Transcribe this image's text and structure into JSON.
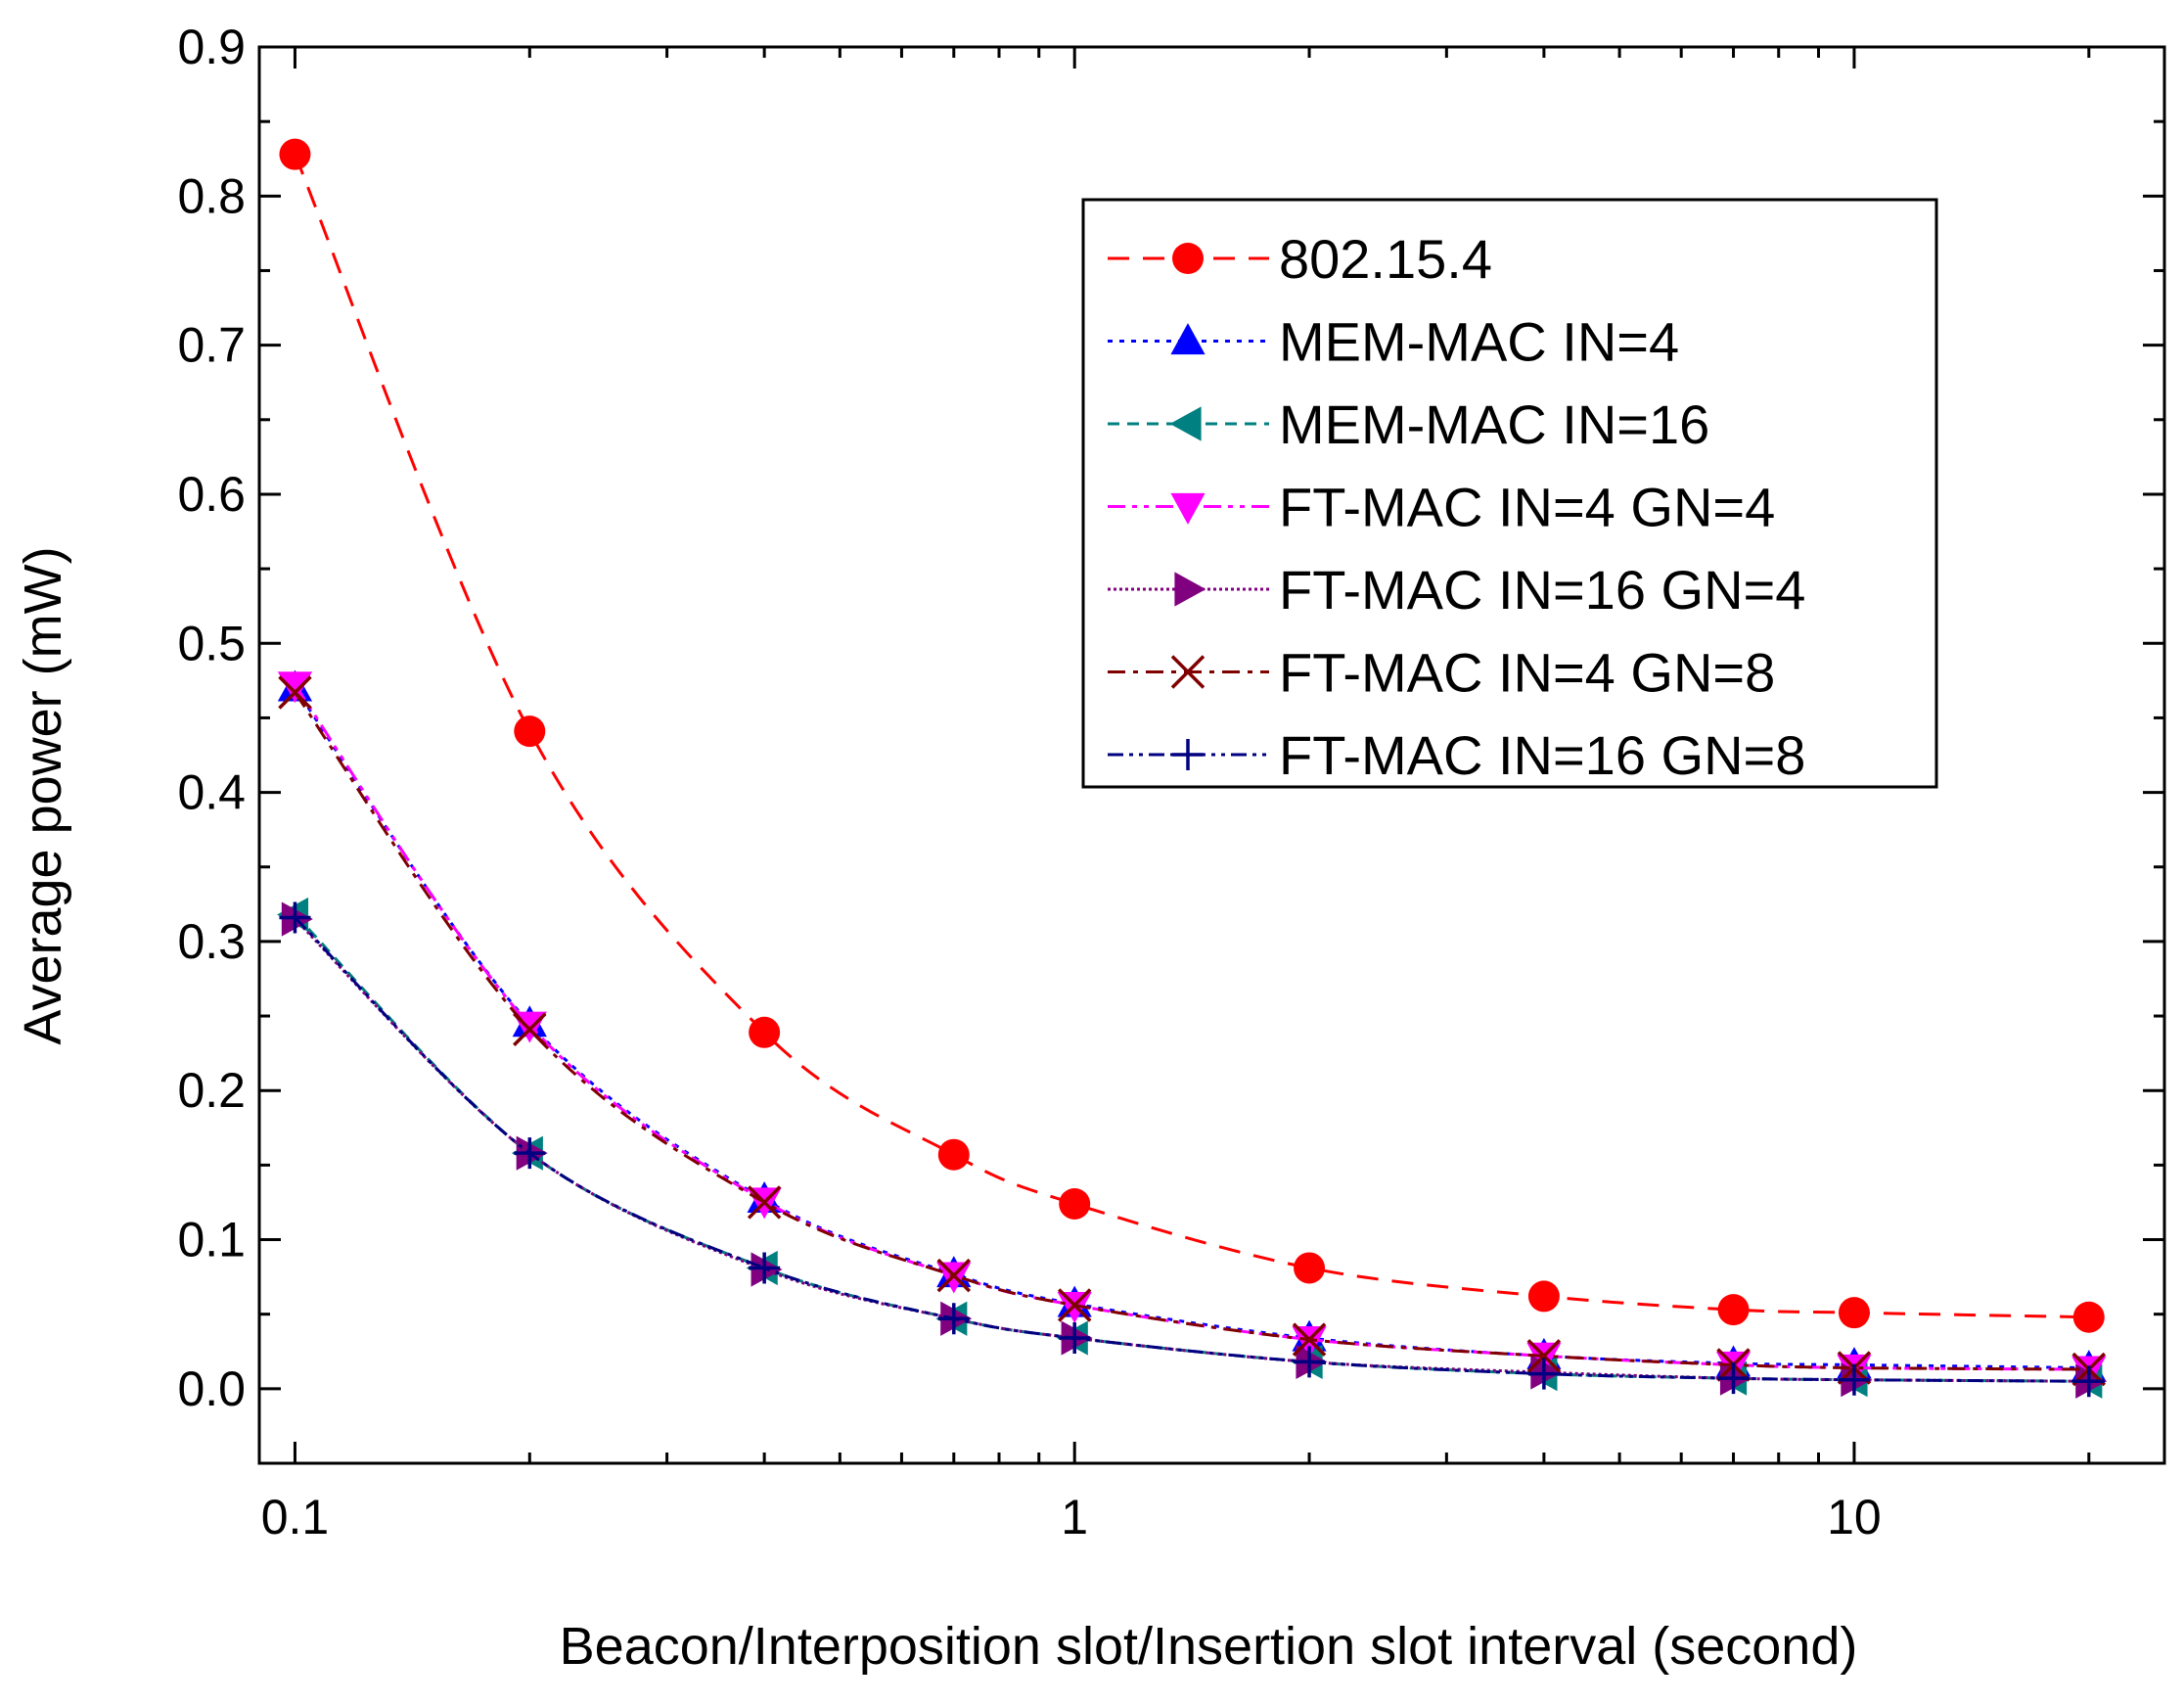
{
  "chart_data": {
    "type": "line",
    "title": "",
    "xlabel": "Beacon/Interposition slot/Insertion slot interval (second)",
    "ylabel": "Average power (mW)",
    "xscale": "log",
    "xlim": [
      0.09,
      25
    ],
    "ylim": [
      -0.05,
      0.9
    ],
    "xticks": [
      0.1,
      1,
      10
    ],
    "xtick_labels": [
      "0.1",
      "1",
      "10"
    ],
    "yticks": [
      0.0,
      0.1,
      0.2,
      0.3,
      0.4,
      0.5,
      0.6,
      0.7,
      0.8,
      0.9
    ],
    "ytick_labels": [
      "0.0",
      "0.1",
      "0.2",
      "0.3",
      "0.4",
      "0.5",
      "0.6",
      "0.7",
      "0.8",
      "0.9"
    ],
    "grid": false,
    "legend_position": "top-right",
    "x": [
      0.1,
      0.2,
      0.4,
      0.7,
      1,
      2,
      4,
      7,
      10,
      20
    ],
    "series": [
      {
        "name": "802.15.4",
        "color": "#ff0000",
        "marker": "circle",
        "dash": "22,14",
        "values": [
          0.828,
          0.441,
          0.239,
          0.157,
          0.124,
          0.081,
          0.062,
          0.053,
          0.051,
          0.048
        ]
      },
      {
        "name": "MEM-MAC IN=4",
        "color": "#0000ff",
        "marker": "triangle-up",
        "dash": "5,7",
        "values": [
          0.47,
          0.245,
          0.127,
          0.077,
          0.057,
          0.034,
          0.022,
          0.017,
          0.016,
          0.014
        ]
      },
      {
        "name": "MEM-MAC IN=16",
        "color": "#008080",
        "marker": "triangle-left",
        "dash": "12,8",
        "values": [
          0.318,
          0.158,
          0.081,
          0.047,
          0.034,
          0.018,
          0.01,
          0.007,
          0.006,
          0.005
        ]
      },
      {
        "name": "FT-MAC IN=4 GN=4",
        "color": "#ff00ff",
        "marker": "triangle-down",
        "dash": "18,7,5,7,5,7",
        "values": [
          0.472,
          0.244,
          0.126,
          0.076,
          0.056,
          0.033,
          0.022,
          0.016,
          0.014,
          0.013
        ]
      },
      {
        "name": "FT-MAC IN=16 GN=4",
        "color": "#800080",
        "marker": "triangle-right",
        "dash": "3,3",
        "values": [
          0.315,
          0.158,
          0.08,
          0.047,
          0.034,
          0.018,
          0.011,
          0.007,
          0.006,
          0.005
        ]
      },
      {
        "name": "FT-MAC IN=4 GN=8",
        "color": "#800000",
        "marker": "x",
        "dash": "18,8,5,8",
        "values": [
          0.467,
          0.241,
          0.125,
          0.076,
          0.056,
          0.033,
          0.022,
          0.016,
          0.014,
          0.013
        ]
      },
      {
        "name": "FT-MAC IN=16 GN=8",
        "color": "#000080",
        "marker": "plus",
        "dash": "16,6,4,6,4,6",
        "values": [
          0.316,
          0.158,
          0.081,
          0.047,
          0.034,
          0.018,
          0.01,
          0.007,
          0.006,
          0.005
        ]
      }
    ]
  }
}
